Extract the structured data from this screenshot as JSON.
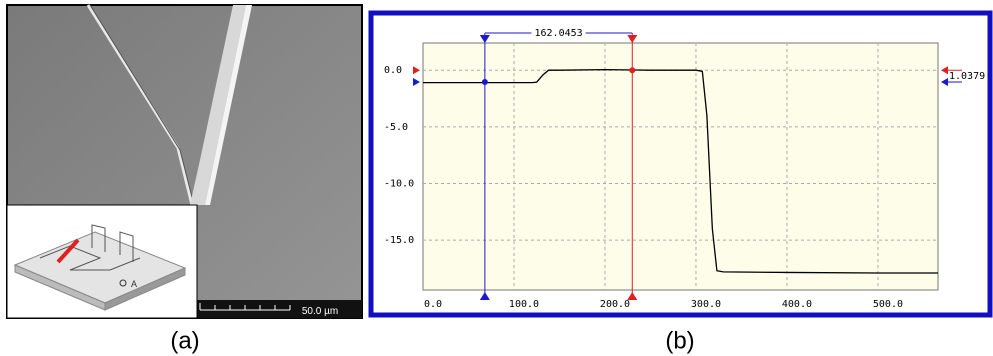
{
  "panel_a": {
    "label": "(a)",
    "scale_bar": "50.0 µm",
    "inset_label": "A"
  },
  "panel_b": {
    "label": "(b)"
  },
  "chart_data": {
    "type": "line",
    "x": [
      0,
      120,
      125,
      132,
      138,
      150,
      200,
      250,
      300,
      307,
      312,
      318,
      323,
      330,
      400,
      500,
      566
    ],
    "values": [
      -1.1,
      -1.1,
      -1.05,
      -0.4,
      0,
      0,
      0.05,
      0,
      0,
      -0.1,
      -4,
      -14,
      -17.7,
      -17.8,
      -17.85,
      -17.9,
      -17.9
    ],
    "color": "#000000",
    "xlim": [
      0,
      566
    ],
    "ylim": [
      -19.4,
      2.4
    ],
    "xticks": [
      {
        "value": 0,
        "label": "0.0"
      },
      {
        "value": 100,
        "label": "100.0"
      },
      {
        "value": 200,
        "label": "200.0"
      },
      {
        "value": 300,
        "label": "300.0"
      },
      {
        "value": 400,
        "label": "400.0"
      },
      {
        "value": 500,
        "label": "500.0"
      }
    ],
    "yticks": [
      {
        "value": 0,
        "label": "0.0"
      },
      {
        "value": -5,
        "label": "-5.0"
      },
      {
        "value": -10,
        "label": "-10.0"
      },
      {
        "value": -15,
        "label": "-15.0"
      }
    ],
    "grid": true,
    "cursors": [
      {
        "x": 68,
        "y": -1.04,
        "color": "#1a1acc"
      },
      {
        "x": 230,
        "y": 0,
        "color": "#e02020"
      }
    ],
    "dx": 162.0453,
    "dy": 1.0379
  }
}
